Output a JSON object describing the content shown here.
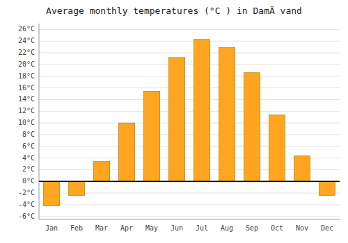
{
  "chart_data": {
    "type": "bar",
    "title": "Average monthly temperatures (°C ) in DamÄ vand",
    "categories": [
      "Jan",
      "Feb",
      "Mar",
      "Apr",
      "May",
      "Jun",
      "Jul",
      "Aug",
      "Sep",
      "Oct",
      "Nov",
      "Dec"
    ],
    "values": [
      -4.2,
      -2.4,
      3.4,
      10.0,
      15.4,
      21.2,
      24.3,
      22.9,
      18.6,
      11.4,
      4.4,
      -2.4
    ],
    "color": "#FFA520",
    "ylim": [
      -6.5,
      27
    ],
    "yticks": [
      {
        "value": -6,
        "label": "-6°C"
      },
      {
        "value": -4,
        "label": "-4°C"
      },
      {
        "value": -2,
        "label": "-2°C"
      },
      {
        "value": 0,
        "label": "0°C"
      },
      {
        "value": 2,
        "label": "2°C"
      },
      {
        "value": 4,
        "label": "4°C"
      },
      {
        "value": 6,
        "label": "6°C"
      },
      {
        "value": 8,
        "label": "8°C"
      },
      {
        "value": 10,
        "label": "10°C"
      },
      {
        "value": 12,
        "label": "12°C"
      },
      {
        "value": 14,
        "label": "14°C"
      },
      {
        "value": 16,
        "label": "16°C"
      },
      {
        "value": 18,
        "label": "18°C"
      },
      {
        "value": 20,
        "label": "20°C"
      },
      {
        "value": 22,
        "label": "22°C"
      },
      {
        "value": 24,
        "label": "24°C"
      },
      {
        "value": 26,
        "label": "26°C"
      }
    ],
    "grid": true
  }
}
